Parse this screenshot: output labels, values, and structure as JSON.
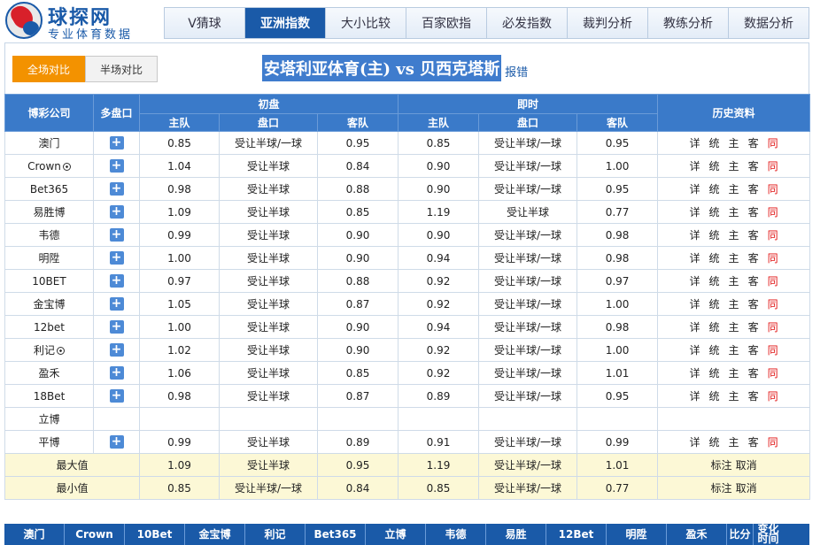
{
  "logo": {
    "title": "球探网",
    "subtitle": "专业体育数据"
  },
  "nav": [
    "V猜球",
    "亚洲指数",
    "大小比较",
    "百家欧指",
    "必发指数",
    "裁判分析",
    "教练分析",
    "数据分析"
  ],
  "toggle": {
    "full": "全场对比",
    "half": "半场对比"
  },
  "match": {
    "title": "安塔利亚体育(主) vs 贝西克塔斯",
    "report": "报错"
  },
  "table": {
    "headers": {
      "company": "博彩公司",
      "multi": "多盘口",
      "initial": "初盘",
      "live": "即时",
      "history": "历史资料",
      "home": "主队",
      "handicap": "盘口",
      "away": "客队"
    },
    "history_links": [
      "详",
      "统",
      "主",
      "客",
      "同"
    ],
    "rows": [
      {
        "company": "澳门",
        "ih": "0.85",
        "ip": "受让半球/一球",
        "ia": "0.95",
        "lh": "0.85",
        "lp": "受让半球/一球",
        "la": "0.95"
      },
      {
        "company": "Crown",
        "ih": "1.04",
        "ip": "受让半球",
        "ia": "0.84",
        "lh": "0.90",
        "lp": "受让半球/一球",
        "la": "1.00"
      },
      {
        "company": "Bet365",
        "ih": "0.98",
        "ip": "受让半球",
        "ia": "0.88",
        "lh": "0.90",
        "lp": "受让半球/一球",
        "la": "0.95"
      },
      {
        "company": "易胜博",
        "ih": "1.09",
        "ip": "受让半球",
        "ia": "0.85",
        "lh": "1.19",
        "lp": "受让半球",
        "la": "0.77"
      },
      {
        "company": "韦德",
        "ih": "0.99",
        "ip": "受让半球",
        "ia": "0.90",
        "lh": "0.90",
        "lp": "受让半球/一球",
        "la": "0.98"
      },
      {
        "company": "明陞",
        "ih": "1.00",
        "ip": "受让半球",
        "ia": "0.90",
        "lh": "0.94",
        "lp": "受让半球/一球",
        "la": "0.98"
      },
      {
        "company": "10BET",
        "ih": "0.97",
        "ip": "受让半球",
        "ia": "0.88",
        "lh": "0.92",
        "lp": "受让半球/一球",
        "la": "0.97"
      },
      {
        "company": "金宝博",
        "ih": "1.05",
        "ip": "受让半球",
        "ia": "0.87",
        "lh": "0.92",
        "lp": "受让半球/一球",
        "la": "1.00"
      },
      {
        "company": "12bet",
        "ih": "1.00",
        "ip": "受让半球",
        "ia": "0.90",
        "lh": "0.94",
        "lp": "受让半球/一球",
        "la": "0.98"
      },
      {
        "company": "利记",
        "ih": "1.02",
        "ip": "受让半球",
        "ia": "0.90",
        "lh": "0.92",
        "lp": "受让半球/一球",
        "la": "1.00"
      },
      {
        "company": "盈禾",
        "ih": "1.06",
        "ip": "受让半球",
        "ia": "0.85",
        "lh": "0.92",
        "lp": "受让半球/一球",
        "la": "1.01"
      },
      {
        "company": "18Bet",
        "ih": "0.98",
        "ip": "受让半球",
        "ia": "0.87",
        "lh": "0.89",
        "lp": "受让半球/一球",
        "la": "0.95"
      },
      {
        "company": "立博",
        "ih": "",
        "ip": "",
        "ia": "",
        "lh": "",
        "lp": "",
        "la": ""
      },
      {
        "company": "平博",
        "ih": "0.99",
        "ip": "受让半球",
        "ia": "0.89",
        "lh": "0.91",
        "lp": "受让半球/一球",
        "la": "0.99"
      }
    ],
    "summary": [
      {
        "label": "最大值",
        "ih": "1.09",
        "ip": "受让半球",
        "ia": "0.95",
        "lh": "1.19",
        "lp": "受让半球/一球",
        "la": "1.01"
      },
      {
        "label": "最小值",
        "ih": "0.85",
        "ip": "受让半球/一球",
        "ia": "0.84",
        "lh": "0.85",
        "lp": "受让半球/一球",
        "la": "0.77"
      }
    ],
    "summary_links": [
      "标注",
      "取消"
    ]
  },
  "bottom_bar": [
    "澳门",
    "Crown",
    "10Bet",
    "金宝博",
    "利记",
    "Bet365",
    "立博",
    "韦德",
    "易胜",
    "12Bet",
    "明陞",
    "盈禾",
    "比分",
    "变化时间"
  ]
}
